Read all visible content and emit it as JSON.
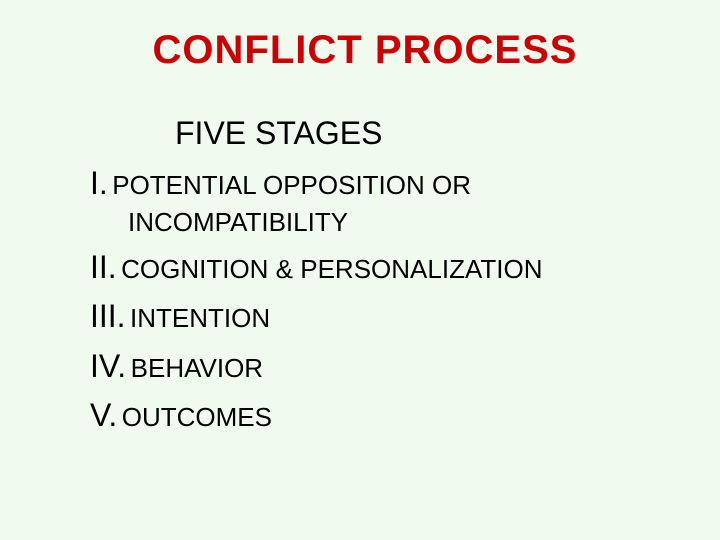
{
  "slide": {
    "background_color": "#f0faef",
    "title": {
      "text": "CONFLICT  PROCESS",
      "color": "#cc0000",
      "fontsize": 40
    },
    "subtitle": {
      "text": "FIVE STAGES",
      "color": "#000000",
      "fontsize": 32
    },
    "stages": [
      {
        "numeral": "I.",
        "text_line1": "POTENTIAL OPPOSITION OR",
        "text_line2": "INCOMPATIBILITY"
      },
      {
        "numeral": "II.",
        "text_line1": "COGNITION & PERSONALIZATION",
        "text_line2": ""
      },
      {
        "numeral": "III.",
        "text_line1": "INTENTION",
        "text_line2": ""
      },
      {
        "numeral": "IV.",
        "text_line1": "BEHAVIOR",
        "text_line2": ""
      },
      {
        "numeral": "V.",
        "text_line1": "OUTCOMES",
        "text_line2": ""
      }
    ],
    "stage_style": {
      "numeral_color": "#000000",
      "numeral_fontsize": 32,
      "text_color": "#000000",
      "text_fontsize": 26
    }
  }
}
